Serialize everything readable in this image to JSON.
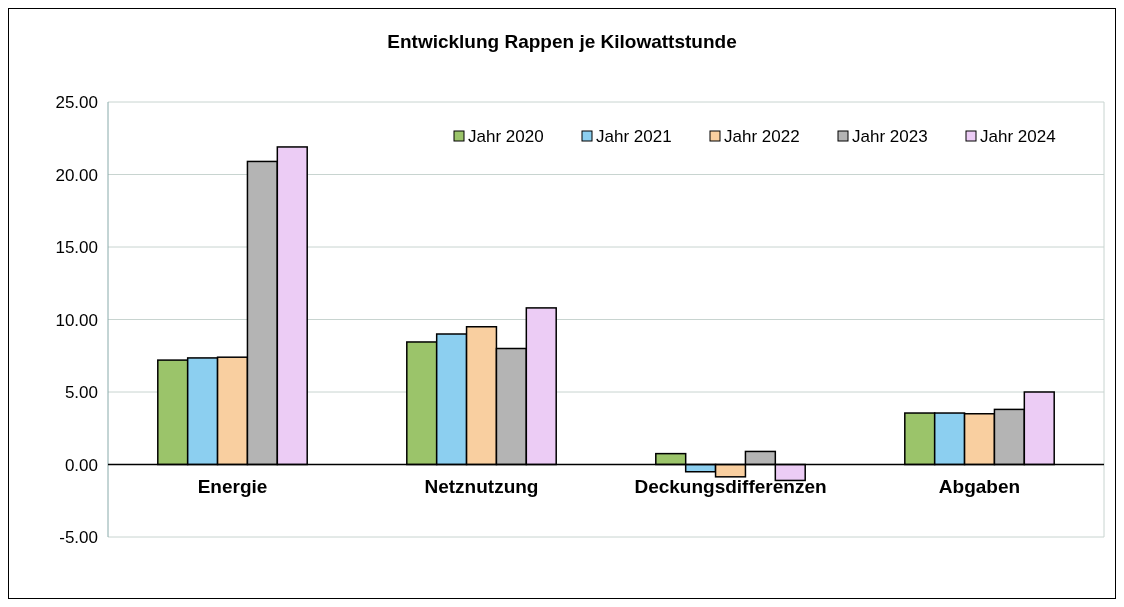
{
  "chart_data": {
    "type": "bar",
    "title": "Entwicklung Rappen je Kilowattstunde",
    "categories": [
      "Energie",
      "Netznutzung",
      "Deckungsdifferenzen",
      "Abgaben"
    ],
    "series": [
      {
        "name": "Jahr 2020",
        "color": "#9bc46a",
        "values": [
          7.2,
          8.45,
          0.75,
          3.55
        ]
      },
      {
        "name": "Jahr 2021",
        "color": "#8ccff0",
        "values": [
          7.35,
          9.0,
          -0.5,
          3.55
        ]
      },
      {
        "name": "Jahr 2022",
        "color": "#f9cfa0",
        "values": [
          7.4,
          9.5,
          -0.85,
          3.5
        ]
      },
      {
        "name": "Jahr 2023",
        "color": "#b4b4b4",
        "values": [
          20.9,
          8.0,
          0.9,
          3.8
        ]
      },
      {
        "name": "Jahr 2024",
        "color": "#ecccf5",
        "values": [
          21.9,
          10.8,
          -1.1,
          5.0
        ]
      }
    ],
    "ylim": [
      -5,
      25
    ],
    "yticks": [
      {
        "value": -5,
        "label": "-5.00"
      },
      {
        "value": 0,
        "label": "0.00"
      },
      {
        "value": 5,
        "label": "5.00"
      },
      {
        "value": 10,
        "label": "10.00"
      },
      {
        "value": 15,
        "label": "15.00"
      },
      {
        "value": 20,
        "label": "20.00"
      },
      {
        "value": 25,
        "label": "25.00"
      }
    ],
    "grid": "y",
    "legend": "top right"
  }
}
